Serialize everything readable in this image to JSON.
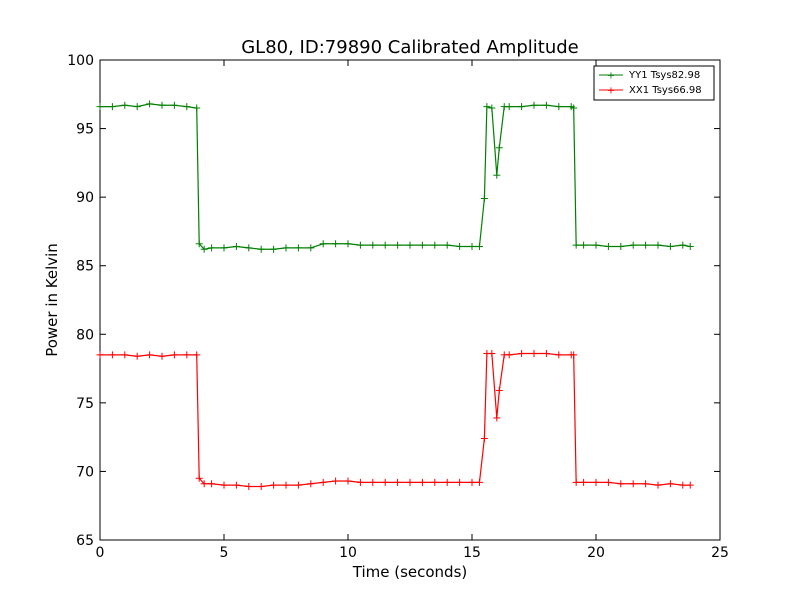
{
  "chart_data": {
    "type": "line",
    "title": "GL80, ID:79890 Calibrated Amplitude",
    "xlabel": "Time (seconds)",
    "ylabel": "Power in Kelvin",
    "xlim": [
      0,
      25
    ],
    "ylim": [
      65,
      100
    ],
    "xticks": [
      "0",
      "5",
      "10",
      "15",
      "20",
      "25"
    ],
    "yticks": [
      "65",
      "70",
      "75",
      "80",
      "85",
      "90",
      "95",
      "100"
    ],
    "grid": false,
    "legend_position": "top-right",
    "series": [
      {
        "name": "YY1 Tsys82.98",
        "color": "#008000",
        "marker": "+",
        "x": [
          0,
          0.5,
          1,
          1.5,
          2,
          2.5,
          3,
          3.5,
          3.9,
          4.0,
          4.2,
          4.5,
          5,
          5.5,
          6,
          6.5,
          7,
          7.5,
          8,
          8.5,
          9,
          9.5,
          10,
          10.5,
          11,
          11.5,
          12,
          12.5,
          13,
          13.5,
          14,
          14.5,
          15,
          15.3,
          15.5,
          15.6,
          15.8,
          16.0,
          16.1,
          16.3,
          16.5,
          17,
          17.5,
          18,
          18.5,
          19,
          19.1,
          19.2,
          19.5,
          20,
          20.5,
          21,
          21.5,
          22,
          22.5,
          23,
          23.5,
          23.8
        ],
        "values": [
          96.6,
          96.6,
          96.7,
          96.6,
          96.8,
          96.7,
          96.7,
          96.6,
          96.5,
          86.6,
          86.2,
          86.3,
          86.3,
          86.4,
          86.3,
          86.2,
          86.2,
          86.3,
          86.3,
          86.3,
          86.6,
          86.6,
          86.6,
          86.5,
          86.5,
          86.5,
          86.5,
          86.5,
          86.5,
          86.5,
          86.5,
          86.4,
          86.4,
          86.4,
          89.9,
          96.6,
          96.5,
          91.6,
          93.6,
          96.6,
          96.6,
          96.6,
          96.7,
          96.7,
          96.6,
          96.6,
          96.5,
          86.5,
          86.5,
          86.5,
          86.4,
          86.4,
          86.5,
          86.5,
          86.5,
          86.4,
          86.5,
          86.4
        ]
      },
      {
        "name": "XX1 Tsys66.98",
        "color": "#ff0000",
        "marker": "+",
        "x": [
          0,
          0.5,
          1,
          1.5,
          2,
          2.5,
          3,
          3.5,
          3.9,
          4.0,
          4.2,
          4.5,
          5,
          5.5,
          6,
          6.5,
          7,
          7.5,
          8,
          8.5,
          9,
          9.5,
          10,
          10.5,
          11,
          11.5,
          12,
          12.5,
          13,
          13.5,
          14,
          14.5,
          15,
          15.3,
          15.5,
          15.6,
          15.8,
          16.0,
          16.1,
          16.3,
          16.5,
          17,
          17.5,
          18,
          18.5,
          19,
          19.1,
          19.2,
          19.5,
          20,
          20.5,
          21,
          21.5,
          22,
          22.5,
          23,
          23.5,
          23.8
        ],
        "values": [
          78.5,
          78.5,
          78.5,
          78.4,
          78.5,
          78.4,
          78.5,
          78.5,
          78.5,
          69.5,
          69.1,
          69.1,
          69.0,
          69.0,
          68.9,
          68.9,
          69.0,
          69.0,
          69.0,
          69.1,
          69.2,
          69.3,
          69.3,
          69.2,
          69.2,
          69.2,
          69.2,
          69.2,
          69.2,
          69.2,
          69.2,
          69.2,
          69.2,
          69.2,
          72.4,
          78.6,
          78.6,
          73.9,
          75.9,
          78.5,
          78.5,
          78.6,
          78.6,
          78.6,
          78.5,
          78.5,
          78.5,
          69.2,
          69.2,
          69.2,
          69.2,
          69.1,
          69.1,
          69.1,
          69.0,
          69.1,
          69.0,
          69.0
        ]
      }
    ]
  }
}
